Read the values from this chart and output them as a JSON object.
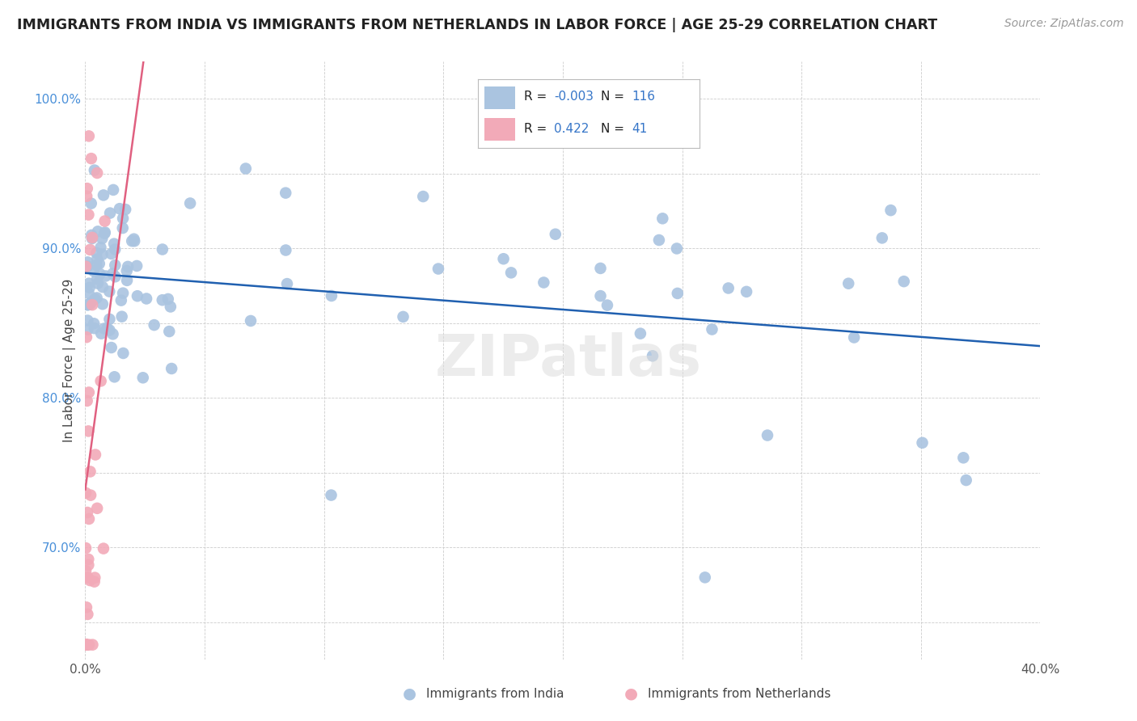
{
  "title": "IMMIGRANTS FROM INDIA VS IMMIGRANTS FROM NETHERLANDS IN LABOR FORCE | AGE 25-29 CORRELATION CHART",
  "source": "Source: ZipAtlas.com",
  "ylabel": "In Labor Force | Age 25-29",
  "xlim": [
    0.0,
    0.4
  ],
  "ylim": [
    0.625,
    1.025
  ],
  "xtick_positions": [
    0.0,
    0.05,
    0.1,
    0.15,
    0.2,
    0.25,
    0.3,
    0.35,
    0.4
  ],
  "xticklabels": [
    "0.0%",
    "",
    "",
    "",
    "",
    "",
    "",
    "",
    "40.0%"
  ],
  "ytick_positions": [
    0.65,
    0.7,
    0.75,
    0.8,
    0.85,
    0.9,
    0.95,
    1.0
  ],
  "yticklabels": [
    "",
    "70.0%",
    "",
    "80.0%",
    "",
    "90.0%",
    "",
    "100.0%"
  ],
  "blue_color": "#aac4e0",
  "pink_color": "#f2aab8",
  "blue_line_color": "#2060b0",
  "pink_line_color": "#e06080",
  "legend_R_blue": "-0.003",
  "legend_N_blue": "116",
  "legend_R_pink": "0.422",
  "legend_N_pink": "41",
  "ytick_color": "#4a90d9",
  "watermark": "ZIPatlas",
  "grid_color": "#cccccc",
  "blue_scatter_seed": 77,
  "pink_scatter_seed": 88
}
